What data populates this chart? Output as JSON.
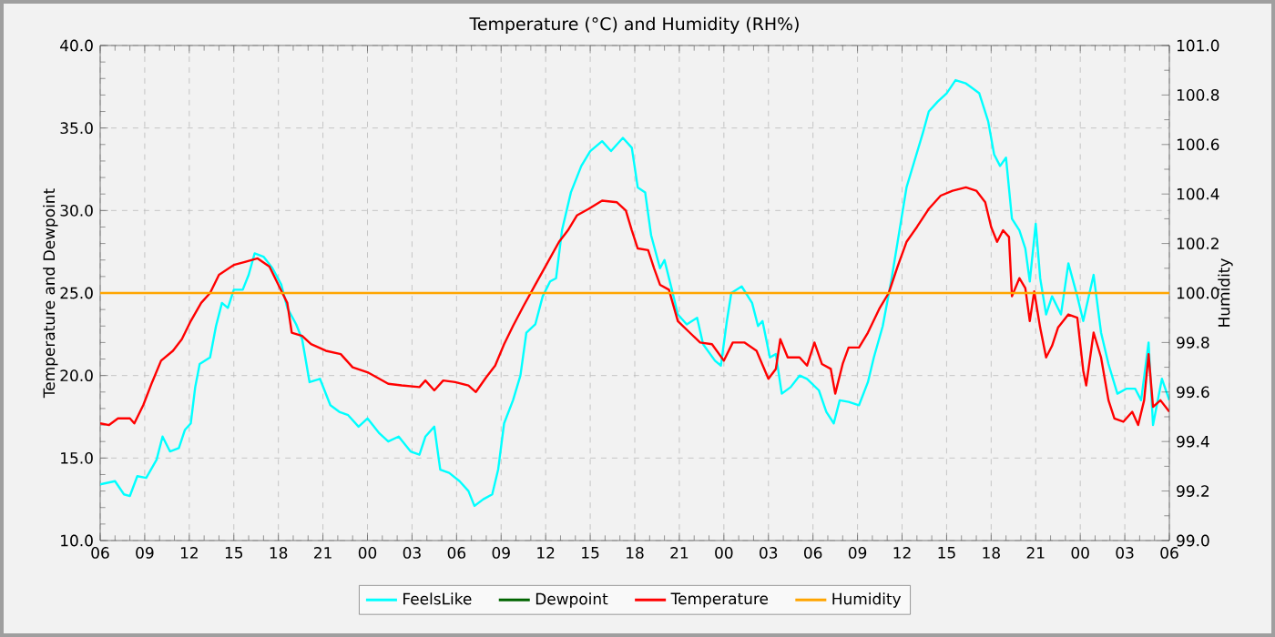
{
  "chart_data": {
    "type": "line",
    "title": "Temperature (°C) and Humidity (RH%)",
    "ylabel": "Temperature and Dewpoint",
    "y2label": "Humidity",
    "xlim": [
      6,
      78
    ],
    "xticks": [
      {
        "value": 6,
        "label": "06"
      },
      {
        "value": 9,
        "label": "09"
      },
      {
        "value": 12,
        "label": "12"
      },
      {
        "value": 15,
        "label": "15"
      },
      {
        "value": 18,
        "label": "18"
      },
      {
        "value": 21,
        "label": "21"
      },
      {
        "value": 24,
        "label": "00"
      },
      {
        "value": 27,
        "label": "03"
      },
      {
        "value": 30,
        "label": "06"
      },
      {
        "value": 33,
        "label": "09"
      },
      {
        "value": 36,
        "label": "12"
      },
      {
        "value": 39,
        "label": "15"
      },
      {
        "value": 42,
        "label": "18"
      },
      {
        "value": 45,
        "label": "21"
      },
      {
        "value": 48,
        "label": "00"
      },
      {
        "value": 51,
        "label": "03"
      },
      {
        "value": 54,
        "label": "06"
      },
      {
        "value": 57,
        "label": "09"
      },
      {
        "value": 60,
        "label": "12"
      },
      {
        "value": 63,
        "label": "15"
      },
      {
        "value": 66,
        "label": "18"
      },
      {
        "value": 69,
        "label": "21"
      },
      {
        "value": 72,
        "label": "00"
      },
      {
        "value": 75,
        "label": "03"
      },
      {
        "value": 78,
        "label": "06"
      }
    ],
    "ylim": [
      10,
      40
    ],
    "yticks": [
      {
        "value": 10,
        "label": "10.0"
      },
      {
        "value": 15,
        "label": "15.0"
      },
      {
        "value": 20,
        "label": "20.0"
      },
      {
        "value": 25,
        "label": "25.0"
      },
      {
        "value": 30,
        "label": "30.0"
      },
      {
        "value": 35,
        "label": "35.0"
      },
      {
        "value": 40,
        "label": "40.0"
      }
    ],
    "y2lim": [
      99,
      101
    ],
    "y2ticks": [
      {
        "value": 99,
        "label": "99.0"
      },
      99.2,
      99.4,
      99.6,
      99.8,
      {
        "value": 100,
        "label": "100.0"
      },
      100.2,
      100.4,
      100.6,
      100.8,
      {
        "value": 101,
        "label": "101.0"
      }
    ],
    "grid": true,
    "legend": "bottom",
    "series": [
      {
        "name": "FeelsLike",
        "color": "#00ffff",
        "x": [
          6.0,
          7.0,
          7.6,
          8.0,
          8.5,
          9.1,
          9.8,
          10.2,
          10.7,
          11.3,
          11.7,
          12.1,
          12.4,
          12.7,
          13.4,
          13.8,
          14.2,
          14.6,
          15.0,
          15.6,
          16.0,
          16.4,
          17.0,
          17.6,
          18.2,
          18.6,
          19.2,
          19.6,
          20.1,
          20.8,
          21.5,
          22.1,
          22.7,
          23.4,
          24.0,
          24.8,
          25.4,
          26.1,
          26.9,
          27.5,
          27.9,
          28.5,
          28.9,
          29.5,
          30.2,
          30.8,
          31.2,
          31.8,
          32.4,
          32.8,
          33.2,
          33.8,
          34.3,
          34.7,
          35.3,
          35.8,
          36.3,
          36.7,
          37.1,
          37.7,
          38.4,
          39.0,
          39.8,
          40.4,
          41.2,
          41.8,
          42.2,
          42.7,
          43.1,
          43.7,
          44.0,
          44.5,
          44.9,
          45.5,
          46.2,
          46.6,
          47.4,
          47.8,
          48.2,
          48.5,
          49.2,
          49.9,
          50.3,
          50.6,
          51.1,
          51.5,
          51.9,
          52.5,
          53.1,
          53.6,
          54.4,
          54.9,
          55.4,
          55.8,
          56.4,
          57.1,
          57.7,
          58.1,
          58.7,
          59.3,
          59.9,
          60.3,
          60.8,
          61.4,
          61.8,
          62.4,
          63.0,
          63.6,
          64.3,
          64.6,
          65.2,
          65.8,
          66.2,
          66.6,
          67.0,
          67.4,
          67.9,
          68.3,
          68.6,
          69.0,
          69.3,
          69.7,
          70.1,
          70.7,
          71.2,
          71.8,
          72.2,
          72.9,
          73.4,
          73.9,
          74.5,
          75.1,
          75.7,
          76.1,
          76.6,
          76.9,
          77.5,
          78.0
        ],
        "values": [
          13.4,
          13.6,
          12.8,
          12.7,
          13.9,
          13.8,
          14.9,
          16.3,
          15.4,
          15.6,
          16.7,
          17.1,
          19.3,
          20.7,
          21.1,
          23.0,
          24.4,
          24.1,
          25.2,
          25.2,
          26.1,
          27.4,
          27.2,
          26.5,
          25.5,
          24.1,
          23.1,
          22.2,
          19.6,
          19.8,
          18.2,
          17.8,
          17.6,
          16.9,
          17.4,
          16.5,
          16.0,
          16.3,
          15.4,
          15.2,
          16.3,
          16.9,
          14.3,
          14.1,
          13.6,
          13.0,
          12.1,
          12.5,
          12.8,
          14.3,
          17.1,
          18.5,
          20.0,
          22.6,
          23.1,
          24.8,
          25.7,
          25.9,
          28.8,
          31.1,
          32.7,
          33.6,
          34.2,
          33.6,
          34.4,
          33.8,
          31.4,
          31.1,
          28.5,
          26.5,
          27.0,
          25.2,
          23.7,
          23.1,
          23.5,
          21.9,
          20.9,
          20.6,
          23.3,
          25.0,
          25.4,
          24.4,
          23.0,
          23.3,
          21.1,
          21.3,
          18.9,
          19.3,
          20.0,
          19.8,
          19.1,
          17.8,
          17.1,
          18.5,
          18.4,
          18.2,
          19.6,
          21.1,
          23.0,
          25.9,
          29.2,
          31.4,
          32.9,
          34.7,
          36.0,
          36.6,
          37.1,
          37.9,
          37.7,
          37.5,
          37.1,
          35.4,
          33.4,
          32.7,
          33.2,
          29.5,
          28.8,
          27.7,
          25.7,
          29.2,
          25.9,
          23.7,
          24.8,
          23.7,
          26.8,
          24.8,
          23.3,
          26.1,
          22.6,
          20.7,
          18.9,
          19.2,
          19.2,
          18.5,
          22.0,
          17.0,
          19.8,
          18.5
        ]
      },
      {
        "name": "Dewpoint",
        "color": "#006400"
      },
      {
        "name": "Temperature",
        "color": "#ff0000",
        "x": [
          6.0,
          6.6,
          7.2,
          8.0,
          8.3,
          8.9,
          9.5,
          10.1,
          10.9,
          11.5,
          12.1,
          12.8,
          13.4,
          14.0,
          15.0,
          15.8,
          16.6,
          17.4,
          18.0,
          18.6,
          18.9,
          19.6,
          20.2,
          21.2,
          22.2,
          23.0,
          24.0,
          24.8,
          25.4,
          26.3,
          27.5,
          27.9,
          28.5,
          29.1,
          29.9,
          30.8,
          31.3,
          32.0,
          32.6,
          33.2,
          33.8,
          34.5,
          35.3,
          36.1,
          36.9,
          37.5,
          38.1,
          38.9,
          39.8,
          40.8,
          41.4,
          41.8,
          42.2,
          42.9,
          43.3,
          43.7,
          44.3,
          44.9,
          45.7,
          46.4,
          47.2,
          48.0,
          48.6,
          49.4,
          50.2,
          51.0,
          51.5,
          51.8,
          52.3,
          53.1,
          53.6,
          54.1,
          54.6,
          55.2,
          55.5,
          56.0,
          56.4,
          57.1,
          57.7,
          58.5,
          59.1,
          59.7,
          60.3,
          61.0,
          61.8,
          62.6,
          63.4,
          64.3,
          65.0,
          65.6,
          66.0,
          66.4,
          66.8,
          67.2,
          67.4,
          67.9,
          68.3,
          68.6,
          68.9,
          69.3,
          69.7,
          70.1,
          70.5,
          71.2,
          71.8,
          72.2,
          72.4,
          72.9,
          73.4,
          73.9,
          74.3,
          74.9,
          75.5,
          75.9,
          76.3,
          76.6,
          76.9,
          77.4,
          78.0
        ],
        "values": [
          17.1,
          17.0,
          17.4,
          17.4,
          17.1,
          18.2,
          19.6,
          20.9,
          21.5,
          22.2,
          23.3,
          24.4,
          25.0,
          26.1,
          26.7,
          26.9,
          27.1,
          26.6,
          25.5,
          24.4,
          22.6,
          22.4,
          21.9,
          21.5,
          21.3,
          20.5,
          20.2,
          19.8,
          19.5,
          19.4,
          19.3,
          19.7,
          19.1,
          19.7,
          19.6,
          19.4,
          19.0,
          19.9,
          20.6,
          21.9,
          23.0,
          24.2,
          25.5,
          26.8,
          28.1,
          28.8,
          29.7,
          30.1,
          30.6,
          30.5,
          30.0,
          28.8,
          27.7,
          27.6,
          26.5,
          25.5,
          25.2,
          23.3,
          22.6,
          22.0,
          21.9,
          20.9,
          22.0,
          22.0,
          21.5,
          19.8,
          20.4,
          22.2,
          21.1,
          21.1,
          20.6,
          22.0,
          20.7,
          20.4,
          18.9,
          20.7,
          21.7,
          21.7,
          22.6,
          24.1,
          25.0,
          26.6,
          28.1,
          29.0,
          30.1,
          30.9,
          31.2,
          31.4,
          31.2,
          30.5,
          29.0,
          28.1,
          28.8,
          28.4,
          24.8,
          25.9,
          25.3,
          23.3,
          25.1,
          22.9,
          21.1,
          21.8,
          22.9,
          23.7,
          23.5,
          20.3,
          19.4,
          22.6,
          21.1,
          18.5,
          17.4,
          17.2,
          17.8,
          17.0,
          18.5,
          21.3,
          18.1,
          18.5,
          17.8
        ]
      },
      {
        "name": "Humidity",
        "color": "#ffa500",
        "axis": "y2",
        "x": [
          6,
          78
        ],
        "values": [
          100,
          100
        ]
      }
    ]
  }
}
